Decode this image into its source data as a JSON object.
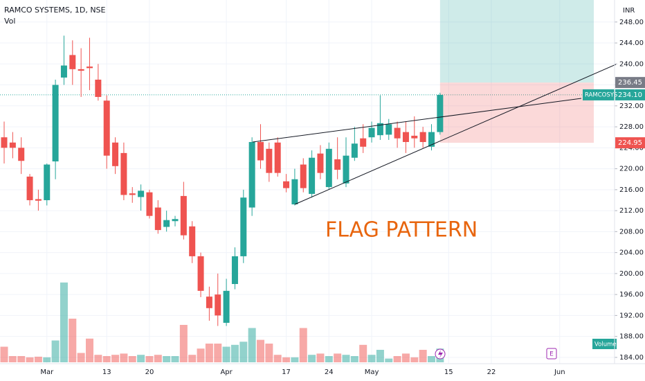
{
  "chart_data": {
    "type": "candlestick",
    "title": "RAMCO SYSTEMS, 1D, NSE",
    "currency": "INR",
    "annotation": "FLAG PATTERN",
    "up_color": "#26a69a",
    "down_color": "#ef5350",
    "categories": [
      null,
      null,
      null,
      null,
      null,
      "Mar",
      null,
      null,
      null,
      null,
      null,
      null,
      "13",
      null,
      null,
      null,
      null,
      "20",
      null,
      null,
      null,
      null,
      null,
      null,
      null,
      null,
      "Apr",
      null,
      null,
      null,
      null,
      null,
      null,
      "17",
      null,
      null,
      null,
      null,
      "24",
      null,
      null,
      null,
      null,
      "May",
      null,
      null,
      null,
      null,
      null,
      null,
      null,
      null,
      "15",
      null,
      null,
      null,
      null,
      "22",
      null,
      null,
      null,
      null,
      null,
      null,
      null,
      "Jun"
    ],
    "open": [
      226,
      225,
      224,
      218.5,
      214.2,
      214,
      221.4,
      237.4,
      241.7,
      239,
      239.5,
      237,
      233,
      225,
      223,
      215.3,
      214.6,
      215.5,
      212.6,
      208.9,
      210,
      214.8,
      209,
      203.3,
      195.6,
      196,
      190.6,
      198,
      203.3,
      212.6,
      225.1,
      223.8,
      225,
      217.6,
      213.2,
      220.8,
      215.2,
      222.9,
      216.5,
      221.8,
      217.2,
      222.1,
      225.8,
      226,
      226.4,
      226.5,
      227.8,
      227,
      226.3,
      227,
      224.2,
      227,
      null,
      null,
      null,
      null,
      null,
      null,
      null,
      null,
      null,
      null,
      null,
      null,
      null,
      null
    ],
    "high": [
      229,
      227,
      226,
      219,
      216,
      221,
      237,
      245.4,
      244.5,
      243,
      245,
      240,
      234,
      226,
      225,
      216.5,
      217,
      216,
      214,
      212,
      211,
      217.5,
      210,
      204,
      197.5,
      200,
      199,
      205,
      216,
      226,
      228.5,
      225,
      226,
      219,
      220,
      222,
      223.5,
      224.5,
      225,
      226,
      226,
      228,
      228.5,
      229,
      234,
      229.5,
      229,
      229,
      230,
      228,
      228.5,
      234.5,
      null,
      null,
      null,
      null,
      null,
      null,
      null,
      null,
      null,
      null,
      null,
      null,
      null,
      null
    ],
    "low": [
      221,
      222,
      219,
      213,
      212,
      213,
      218,
      236,
      236,
      233.7,
      235,
      233,
      220,
      219,
      214,
      213.5,
      212,
      210.5,
      207.6,
      208,
      209,
      206.5,
      202,
      195.5,
      191,
      190,
      190,
      197,
      202,
      211,
      220,
      217.5,
      218.5,
      215.5,
      213,
      215.5,
      214.5,
      218,
      216,
      218,
      216.5,
      221.5,
      223,
      225,
      225.5,
      225.5,
      224,
      223,
      224,
      224,
      223.5,
      226.5,
      null,
      null,
      null,
      null,
      null,
      null,
      null,
      null,
      null,
      null,
      null,
      null,
      null,
      null
    ],
    "close": [
      224,
      224,
      221.5,
      214,
      213.9,
      220.8,
      236,
      239.7,
      239,
      238.7,
      239.2,
      233.7,
      222.5,
      220.5,
      215,
      215,
      215.8,
      211,
      208.3,
      210.2,
      210.4,
      207.3,
      203.3,
      196.7,
      193.4,
      192,
      196.7,
      203.3,
      214.5,
      225.1,
      221.6,
      219.2,
      219.2,
      216.3,
      218,
      216.3,
      222.1,
      219.2,
      223.8,
      219.8,
      222.5,
      224.8,
      224.2,
      227.8,
      228.7,
      228.5,
      225.8,
      225.1,
      225.8,
      225.1,
      227,
      {
        "value": 234.1,
        "label": "234.10"
      },
      null,
      null,
      null,
      null,
      null,
      null,
      null,
      null,
      null,
      null,
      null,
      null,
      null,
      null
    ],
    "volume": {
      "name": "Vol",
      "label": "Volume",
      "values": [
        25,
        10,
        10,
        8,
        9,
        8,
        35,
        128,
        70,
        15,
        38,
        12,
        10,
        12,
        14,
        10,
        12,
        10,
        12,
        10,
        10,
        60,
        12,
        22,
        30,
        30,
        25,
        28,
        33,
        55,
        36,
        30,
        12,
        8,
        8,
        55,
        12,
        14,
        10,
        14,
        12,
        10,
        28,
        12,
        20,
        6,
        10,
        14,
        8,
        20,
        10,
        22,
        null,
        null,
        null,
        null,
        null,
        null,
        null,
        null,
        null,
        null,
        null,
        null,
        null,
        null
      ]
    },
    "symbol": "RAMCOSYS",
    "position": {
      "entry": 236.45,
      "stop": 224.95,
      "target": 252.2
    },
    "ylim": [
      182.8,
      252.2
    ],
    "yticks": [
      {
        "value": 248,
        "label": "248.00"
      },
      {
        "value": 244,
        "label": "244.00"
      },
      {
        "value": 240,
        "label": "240.00"
      },
      {
        "value": 236,
        "label": "236.00"
      },
      {
        "value": 232,
        "label": "232.00"
      },
      {
        "value": 228,
        "label": "228.00"
      },
      {
        "value": 224,
        "label": "224.00"
      },
      {
        "value": 220,
        "label": "220.00"
      },
      {
        "value": 216,
        "label": "216.00"
      },
      {
        "value": 212,
        "label": "212.00"
      },
      {
        "value": 208,
        "label": "208.00"
      },
      {
        "value": 204,
        "label": "204.00"
      },
      {
        "value": 200,
        "label": "200.00"
      },
      {
        "value": 196,
        "label": "196.00"
      },
      {
        "value": 192,
        "label": "192.00"
      },
      {
        "value": 188,
        "label": "188.00"
      },
      {
        "value": 184,
        "label": "184.00"
      }
    ],
    "grid": true
  }
}
